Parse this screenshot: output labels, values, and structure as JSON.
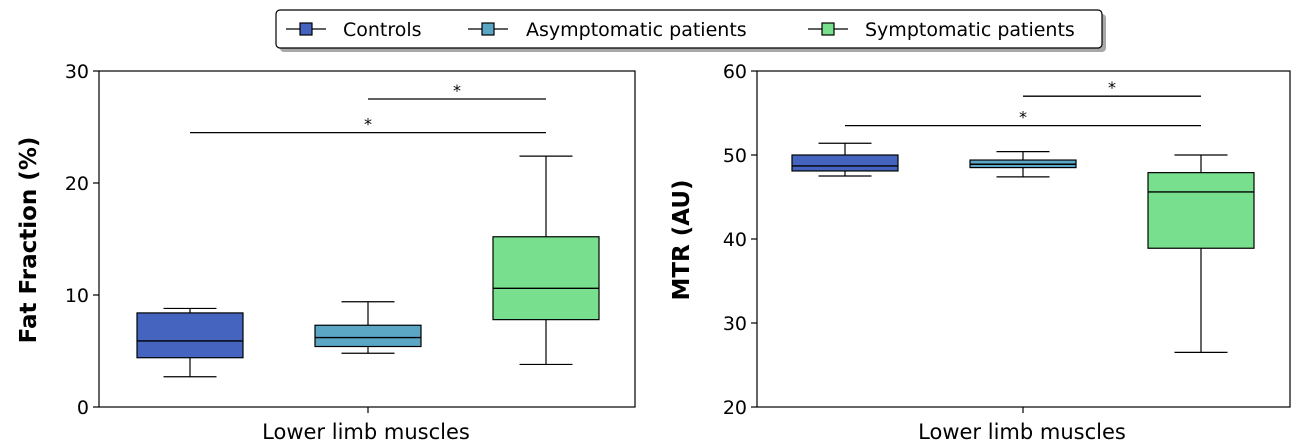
{
  "legend": {
    "entries": [
      {
        "label": "Controls",
        "color": "#4464c0"
      },
      {
        "label": "Asymptomatic patients",
        "color": "#5aa6c4"
      },
      {
        "label": "Symptomatic patients",
        "color": "#78df8e"
      }
    ],
    "placement": "top-center"
  },
  "chart_data": [
    {
      "type": "box",
      "title": "",
      "xlabel": "Lower limb muscles",
      "ylabel": "Fat Fraction (%)",
      "ylim": [
        0,
        30
      ],
      "yticks": [
        "0",
        "10",
        "20",
        "30"
      ],
      "grid": false,
      "series": [
        {
          "name": "Controls",
          "whisker_low": 2.7,
          "q1": 4.4,
          "median": 5.9,
          "q3": 8.4,
          "whisker_high": 8.8
        },
        {
          "name": "Asymptomatic patients",
          "whisker_low": 4.8,
          "q1": 5.4,
          "median": 6.2,
          "q3": 7.3,
          "whisker_high": 9.4
        },
        {
          "name": "Symptomatic patients",
          "whisker_low": 3.8,
          "q1": 7.8,
          "median": 10.6,
          "q3": 15.2,
          "whisker_high": 22.4
        }
      ],
      "significance": [
        {
          "from": "Controls",
          "to": "Symptomatic patients",
          "y": 24.5,
          "label": "*"
        },
        {
          "from": "Asymptomatic patients",
          "to": "Symptomatic patients",
          "y": 27.5,
          "label": "*"
        }
      ]
    },
    {
      "type": "box",
      "title": "",
      "xlabel": "Lower limb muscles",
      "ylabel": "MTR (AU)",
      "ylim": [
        20,
        60
      ],
      "yticks": [
        "20",
        "30",
        "40",
        "50",
        "60"
      ],
      "grid": false,
      "series": [
        {
          "name": "Controls",
          "whisker_low": 47.5,
          "q1": 48.1,
          "median": 48.7,
          "q3": 50.0,
          "whisker_high": 51.4
        },
        {
          "name": "Asymptomatic patients",
          "whisker_low": 47.4,
          "q1": 48.5,
          "median": 48.9,
          "q3": 49.4,
          "whisker_high": 50.4
        },
        {
          "name": "Symptomatic patients",
          "whisker_low": 26.5,
          "q1": 38.9,
          "median": 45.6,
          "q3": 47.9,
          "whisker_high": 50.0
        }
      ],
      "significance": [
        {
          "from": "Controls",
          "to": "Symptomatic patients",
          "y": 53.5,
          "label": "*"
        },
        {
          "from": "Asymptomatic patients",
          "to": "Symptomatic patients",
          "y": 57.0,
          "label": "*"
        }
      ]
    }
  ]
}
